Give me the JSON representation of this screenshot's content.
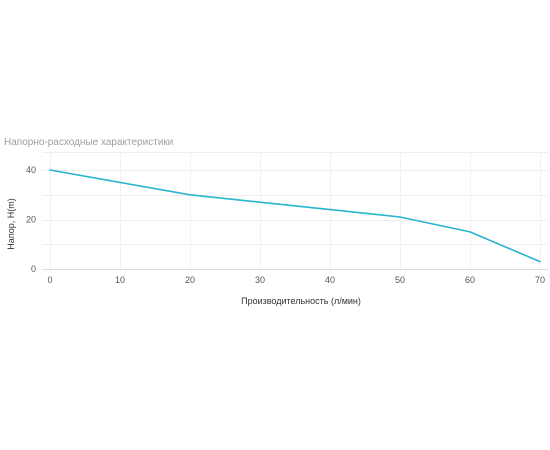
{
  "chart_data": {
    "type": "line",
    "title": "Напорно-расходные характеристики",
    "xlabel": "Производительность (л/мин)",
    "ylabel": "Напор, H(m)",
    "x_ticks": [
      0,
      10,
      20,
      30,
      40,
      50,
      60,
      70
    ],
    "y_ticks": [
      0,
      20,
      40
    ],
    "xlim": [
      0,
      70
    ],
    "ylim": [
      0,
      40
    ],
    "grid": true,
    "series": [
      {
        "color": "#2ab5cf",
        "points": [
          {
            "x": 0,
            "y": 40
          },
          {
            "x": 10,
            "y": 35
          },
          {
            "x": 20,
            "y": 30
          },
          {
            "x": 30,
            "y": 27
          },
          {
            "x": 40,
            "y": 24
          },
          {
            "x": 50,
            "y": 21
          },
          {
            "x": 60,
            "y": 15
          },
          {
            "x": 70,
            "y": 3
          }
        ]
      }
    ]
  }
}
